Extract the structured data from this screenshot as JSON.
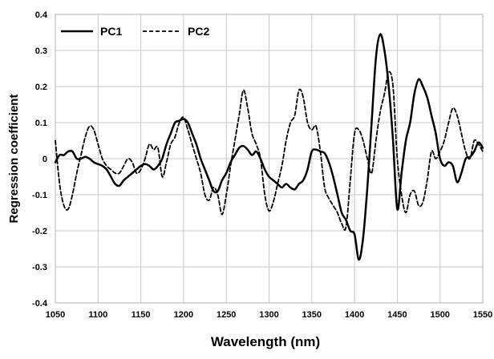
{
  "chart_data": {
    "type": "line",
    "title": "",
    "xlabel": "Wavelength (nm)",
    "ylabel": "Regression coefficient",
    "xlim": [
      1050,
      1550
    ],
    "ylim": [
      -0.4,
      0.4
    ],
    "x_ticks": [
      "1050",
      "1100",
      "1150",
      "1200",
      "1250",
      "1300",
      "1350",
      "1400",
      "1450",
      "1500",
      "1550"
    ],
    "y_ticks": [
      "-0.4",
      "-0.3",
      "-0.2",
      "-0.1",
      "0",
      "0.1",
      "0.2",
      "0.3",
      "0.4"
    ],
    "grid": true,
    "legend_position": "top-left",
    "series": [
      {
        "name": "PC1",
        "style": "solid",
        "color": "#000000",
        "points": [
          [
            1050,
            -0.01
          ],
          [
            1055,
            0.01
          ],
          [
            1060,
            0.01
          ],
          [
            1065,
            0.02
          ],
          [
            1070,
            0.02
          ],
          [
            1075,
            0.0
          ],
          [
            1080,
            0.0
          ],
          [
            1085,
            0.005
          ],
          [
            1090,
            0.0
          ],
          [
            1095,
            -0.01
          ],
          [
            1100,
            -0.015
          ],
          [
            1105,
            -0.02
          ],
          [
            1110,
            -0.03
          ],
          [
            1115,
            -0.05
          ],
          [
            1120,
            -0.07
          ],
          [
            1125,
            -0.075
          ],
          [
            1130,
            -0.06
          ],
          [
            1135,
            -0.05
          ],
          [
            1140,
            -0.04
          ],
          [
            1145,
            -0.03
          ],
          [
            1150,
            -0.02
          ],
          [
            1155,
            -0.015
          ],
          [
            1160,
            -0.02
          ],
          [
            1165,
            -0.03
          ],
          [
            1170,
            -0.02
          ],
          [
            1175,
            0.0
          ],
          [
            1180,
            0.04
          ],
          [
            1185,
            0.07
          ],
          [
            1190,
            0.1
          ],
          [
            1195,
            0.105
          ],
          [
            1200,
            0.11
          ],
          [
            1205,
            0.1
          ],
          [
            1210,
            0.07
          ],
          [
            1215,
            0.04
          ],
          [
            1220,
            0.0
          ],
          [
            1225,
            -0.03
          ],
          [
            1230,
            -0.06
          ],
          [
            1235,
            -0.09
          ],
          [
            1240,
            -0.09
          ],
          [
            1245,
            -0.06
          ],
          [
            1250,
            -0.04
          ],
          [
            1255,
            -0.01
          ],
          [
            1260,
            0.01
          ],
          [
            1265,
            0.03
          ],
          [
            1270,
            0.035
          ],
          [
            1275,
            0.025
          ],
          [
            1280,
            0.01
          ],
          [
            1285,
            0.02
          ],
          [
            1290,
            0.0
          ],
          [
            1295,
            -0.03
          ],
          [
            1300,
            -0.05
          ],
          [
            1305,
            -0.06
          ],
          [
            1310,
            -0.07
          ],
          [
            1315,
            -0.08
          ],
          [
            1320,
            -0.07
          ],
          [
            1325,
            -0.08
          ],
          [
            1330,
            -0.085
          ],
          [
            1335,
            -0.07
          ],
          [
            1340,
            -0.06
          ],
          [
            1345,
            -0.03
          ],
          [
            1350,
            0.02
          ],
          [
            1355,
            0.025
          ],
          [
            1360,
            0.02
          ],
          [
            1365,
            0.015
          ],
          [
            1370,
            -0.01
          ],
          [
            1375,
            -0.05
          ],
          [
            1380,
            -0.1
          ],
          [
            1385,
            -0.15
          ],
          [
            1390,
            -0.17
          ],
          [
            1395,
            -0.2
          ],
          [
            1400,
            -0.21
          ],
          [
            1405,
            -0.28
          ],
          [
            1410,
            -0.22
          ],
          [
            1415,
            -0.08
          ],
          [
            1420,
            0.1
          ],
          [
            1425,
            0.28
          ],
          [
            1430,
            0.345
          ],
          [
            1435,
            0.3
          ],
          [
            1440,
            0.2
          ],
          [
            1445,
            0.05
          ],
          [
            1450,
            -0.14
          ],
          [
            1455,
            -0.04
          ],
          [
            1460,
            0.05
          ],
          [
            1465,
            0.1
          ],
          [
            1470,
            0.18
          ],
          [
            1475,
            0.22
          ],
          [
            1480,
            0.2
          ],
          [
            1485,
            0.17
          ],
          [
            1490,
            0.12
          ],
          [
            1495,
            0.07
          ],
          [
            1500,
            0.0
          ],
          [
            1505,
            -0.02
          ],
          [
            1510,
            -0.01
          ],
          [
            1515,
            -0.02
          ],
          [
            1520,
            -0.065
          ],
          [
            1525,
            -0.04
          ],
          [
            1530,
            0.0
          ],
          [
            1535,
            0.005
          ],
          [
            1540,
            0.02
          ],
          [
            1545,
            0.045
          ],
          [
            1550,
            0.03
          ]
        ]
      },
      {
        "name": "PC2",
        "style": "dashed",
        "color": "#000000",
        "points": [
          [
            1050,
            0.05
          ],
          [
            1055,
            -0.07
          ],
          [
            1060,
            -0.13
          ],
          [
            1065,
            -0.14
          ],
          [
            1070,
            -0.1
          ],
          [
            1075,
            -0.04
          ],
          [
            1080,
            0.01
          ],
          [
            1085,
            0.06
          ],
          [
            1090,
            0.09
          ],
          [
            1095,
            0.08
          ],
          [
            1100,
            0.04
          ],
          [
            1105,
            0.0
          ],
          [
            1110,
            -0.02
          ],
          [
            1115,
            -0.03
          ],
          [
            1120,
            -0.04
          ],
          [
            1125,
            -0.04
          ],
          [
            1130,
            -0.02
          ],
          [
            1135,
            0.0
          ],
          [
            1140,
            -0.01
          ],
          [
            1145,
            -0.04
          ],
          [
            1150,
            -0.03
          ],
          [
            1155,
            0.0
          ],
          [
            1160,
            0.04
          ],
          [
            1165,
            0.025
          ],
          [
            1170,
            0.03
          ],
          [
            1175,
            -0.05
          ],
          [
            1180,
            -0.01
          ],
          [
            1185,
            0.04
          ],
          [
            1190,
            0.06
          ],
          [
            1195,
            0.1
          ],
          [
            1200,
            0.115
          ],
          [
            1205,
            0.08
          ],
          [
            1210,
            0.04
          ],
          [
            1215,
            0.0
          ],
          [
            1220,
            -0.04
          ],
          [
            1225,
            -0.1
          ],
          [
            1230,
            -0.115
          ],
          [
            1235,
            -0.08
          ],
          [
            1240,
            -0.1
          ],
          [
            1245,
            -0.155
          ],
          [
            1250,
            -0.1
          ],
          [
            1255,
            -0.02
          ],
          [
            1260,
            0.05
          ],
          [
            1265,
            0.12
          ],
          [
            1270,
            0.19
          ],
          [
            1275,
            0.14
          ],
          [
            1280,
            0.07
          ],
          [
            1285,
            0.04
          ],
          [
            1290,
            0.0
          ],
          [
            1295,
            -0.1
          ],
          [
            1300,
            -0.145
          ],
          [
            1305,
            -0.12
          ],
          [
            1310,
            -0.07
          ],
          [
            1315,
            -0.02
          ],
          [
            1320,
            0.05
          ],
          [
            1325,
            0.1
          ],
          [
            1330,
            0.12
          ],
          [
            1335,
            0.19
          ],
          [
            1340,
            0.17
          ],
          [
            1345,
            0.1
          ],
          [
            1350,
            0.08
          ],
          [
            1355,
            0.09
          ],
          [
            1360,
            0.02
          ],
          [
            1365,
            -0.08
          ],
          [
            1370,
            -0.11
          ],
          [
            1375,
            -0.13
          ],
          [
            1380,
            -0.15
          ],
          [
            1385,
            -0.18
          ],
          [
            1390,
            -0.19
          ],
          [
            1395,
            -0.06
          ],
          [
            1400,
            0.07
          ],
          [
            1405,
            0.08
          ],
          [
            1410,
            0.05
          ],
          [
            1415,
            0.0
          ],
          [
            1420,
            -0.04
          ],
          [
            1425,
            0.05
          ],
          [
            1430,
            0.13
          ],
          [
            1435,
            0.18
          ],
          [
            1440,
            0.24
          ],
          [
            1445,
            0.2
          ],
          [
            1450,
            0.0
          ],
          [
            1455,
            -0.1
          ],
          [
            1460,
            -0.15
          ],
          [
            1465,
            -0.1
          ],
          [
            1470,
            -0.09
          ],
          [
            1475,
            -0.13
          ],
          [
            1480,
            -0.12
          ],
          [
            1485,
            -0.06
          ],
          [
            1490,
            0.02
          ],
          [
            1495,
            0.0
          ],
          [
            1500,
            0.02
          ],
          [
            1505,
            0.05
          ],
          [
            1510,
            0.1
          ],
          [
            1515,
            0.14
          ],
          [
            1520,
            0.12
          ],
          [
            1525,
            0.07
          ],
          [
            1530,
            0.02
          ],
          [
            1535,
            0.0
          ],
          [
            1540,
            0.05
          ],
          [
            1545,
            0.04
          ],
          [
            1550,
            0.02
          ]
        ]
      }
    ]
  }
}
